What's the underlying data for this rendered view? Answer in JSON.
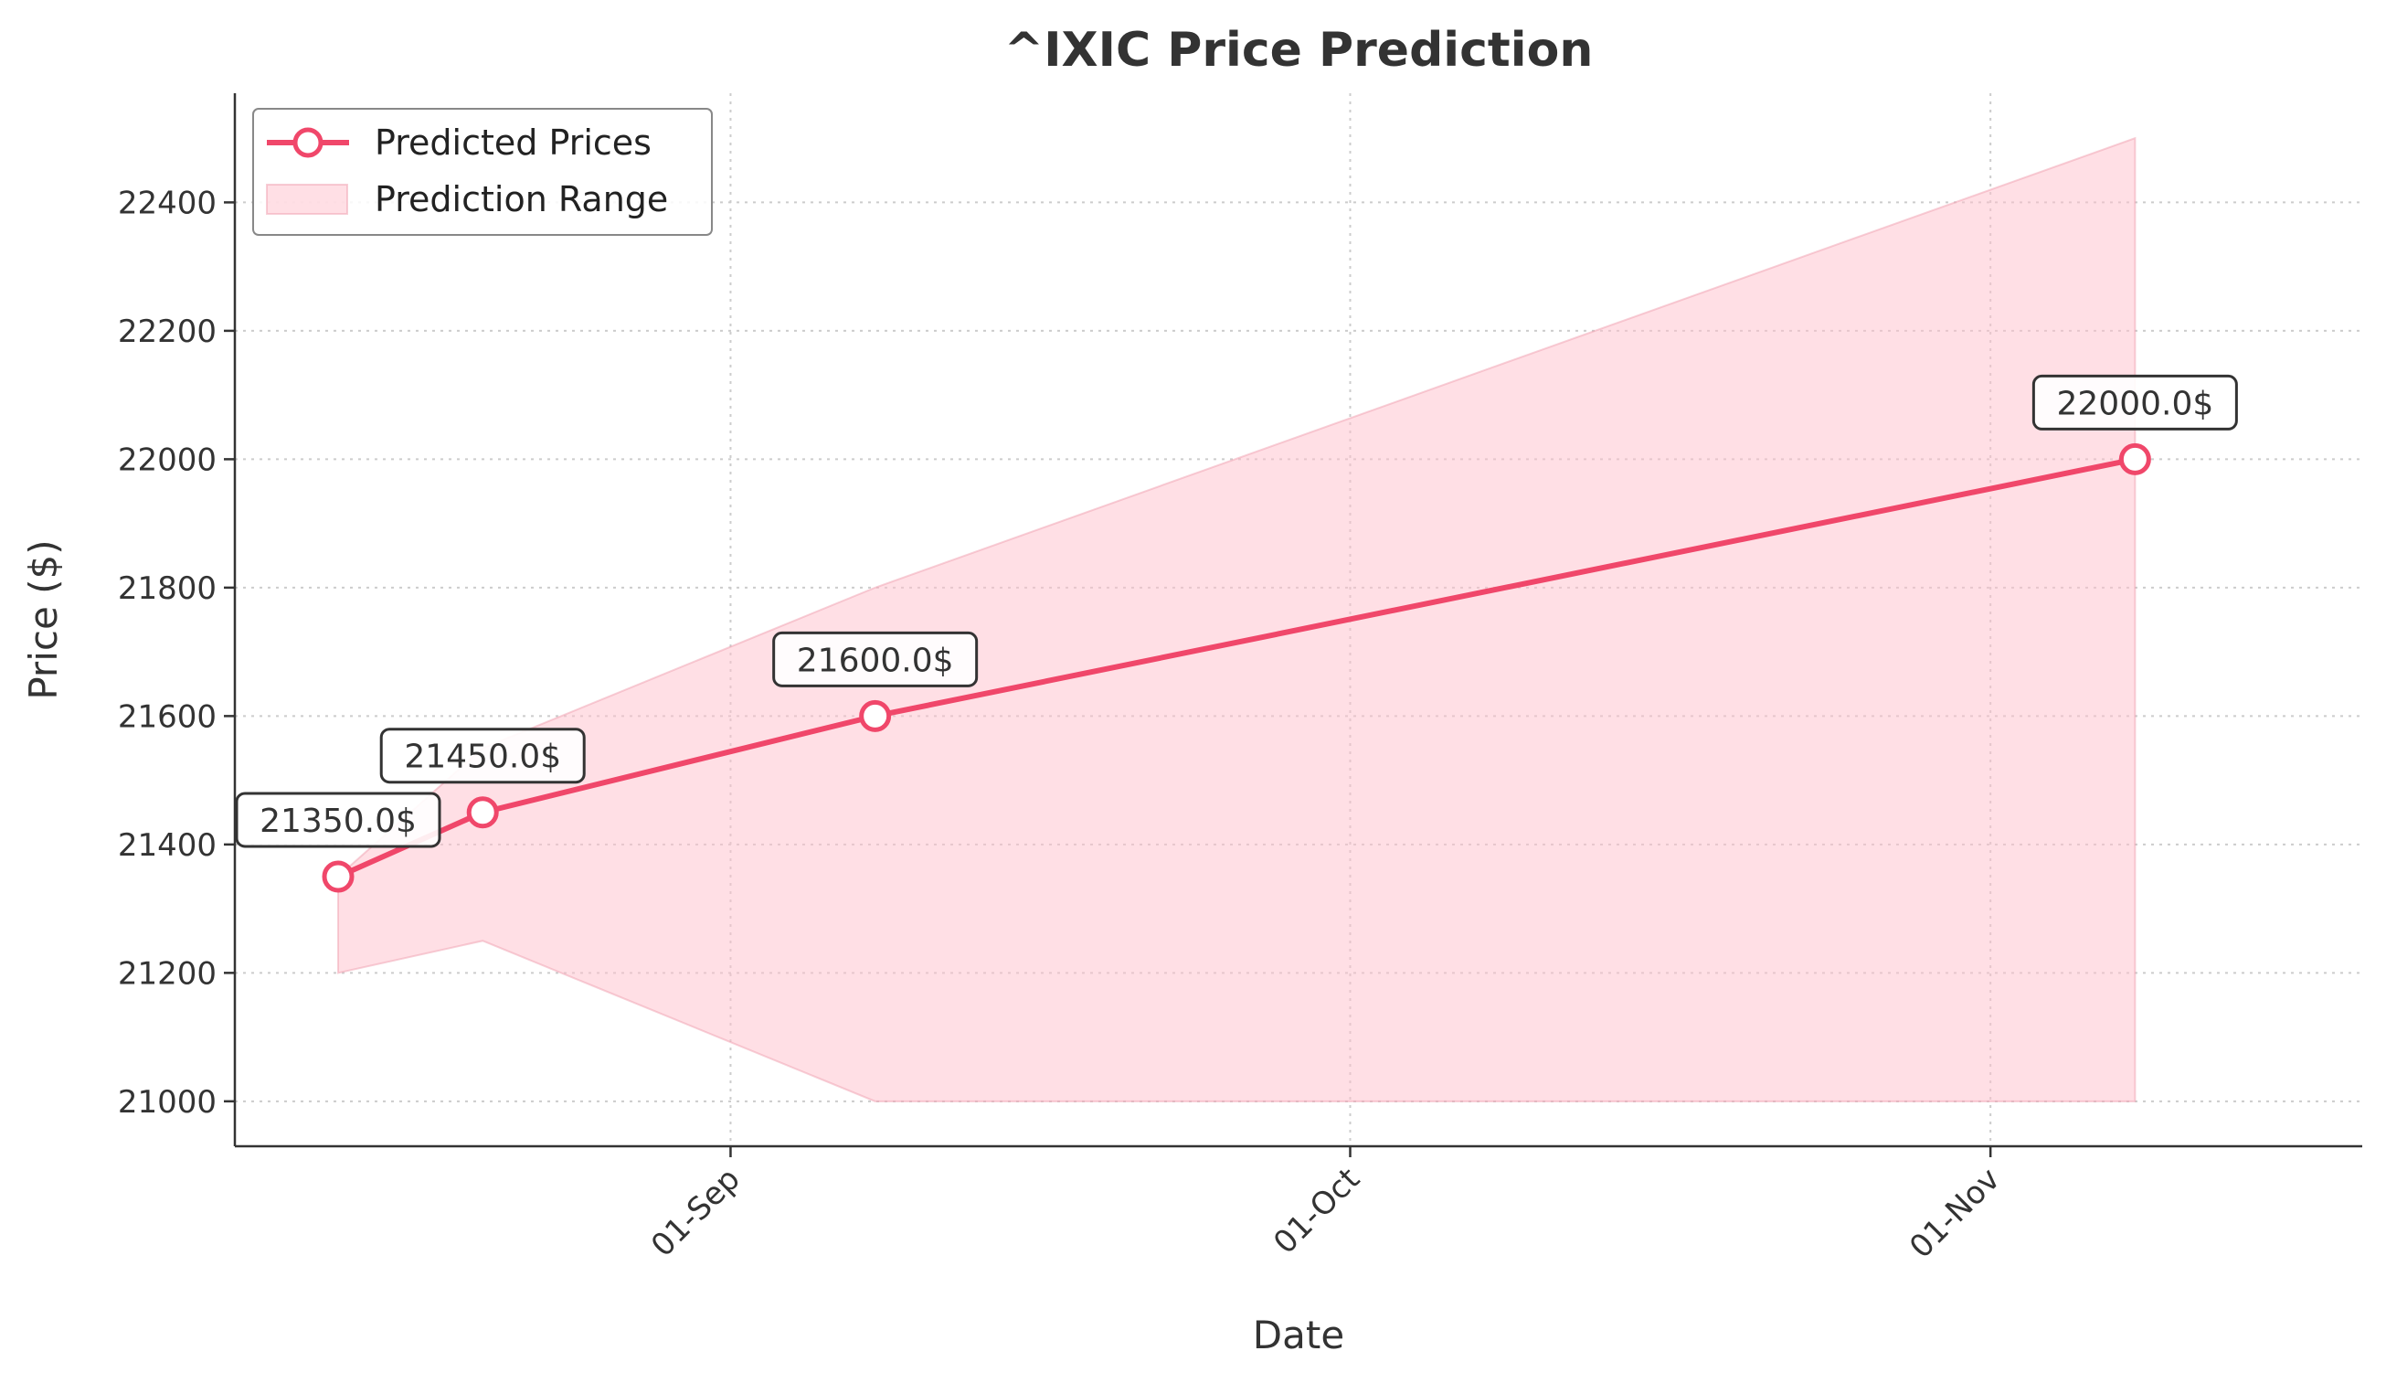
{
  "chart_data": {
    "type": "line",
    "title": "^IXIC Price Prediction",
    "xlabel": "Date",
    "ylabel": "Price ($)",
    "x": [
      "2025-08-13",
      "2025-08-20",
      "2025-09-08",
      "2025-11-08"
    ],
    "x_display": "date",
    "x_range": [
      "2025-08-08",
      "2025-11-19"
    ],
    "x_ticks": [
      {
        "date": "2025-09-01",
        "label": "01-Sep"
      },
      {
        "date": "2025-10-01",
        "label": "01-Oct"
      },
      {
        "date": "2025-11-01",
        "label": "01-Nov"
      }
    ],
    "ylim": [
      20930,
      22570
    ],
    "y_ticks": [
      21000,
      21200,
      21400,
      21600,
      21800,
      22000,
      22200,
      22400
    ],
    "series": [
      {
        "name": "Predicted Prices",
        "values": [
          21350,
          21450,
          21600,
          22000
        ],
        "labels": [
          "21350.0$",
          "21450.0$",
          "21600.0$",
          "22000.0$"
        ],
        "color": "#f0476a"
      }
    ],
    "range": {
      "name": "Prediction Range",
      "lower": [
        21200,
        21250,
        21000,
        21000
      ],
      "upper": [
        21350,
        21550,
        21800,
        22500
      ],
      "color": "#ffc0cc"
    },
    "grid": true,
    "legend": {
      "position": "top-left",
      "entries": [
        "Predicted Prices",
        "Prediction Range"
      ]
    }
  }
}
